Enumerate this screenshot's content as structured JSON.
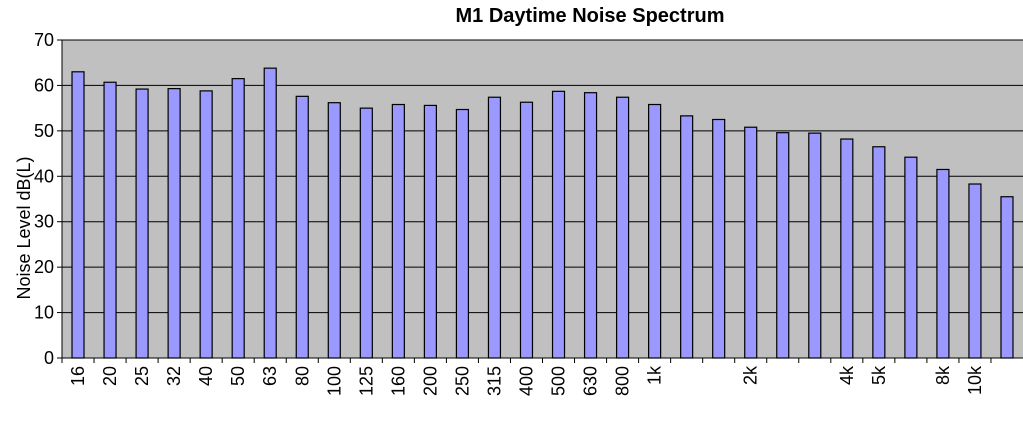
{
  "chart_data": {
    "type": "bar",
    "title": "M1 Daytime Noise Spectrum",
    "y_label": "Noise Level dB(L)",
    "categories": [
      "16",
      "20",
      "25",
      "32",
      "40",
      "50",
      "63",
      "80",
      "100",
      "125",
      "160",
      "200",
      "250",
      "315",
      "400",
      "500",
      "630",
      "800",
      "1k",
      null,
      null,
      "2k",
      null,
      null,
      "4k",
      "5k",
      null,
      "8k",
      "10k",
      null
    ],
    "values": [
      63,
      60.7,
      59.2,
      59.3,
      58.8,
      61.5,
      63.8,
      57.6,
      56.2,
      55,
      55.8,
      55.6,
      54.7,
      57.4,
      56.3,
      58.7,
      58.4,
      57.4,
      55.8,
      53.3,
      52.5,
      50.8,
      49.6,
      49.5,
      48.2,
      46.5,
      44.2,
      41.5,
      38.3,
      35.5
    ],
    "color": "#9999ff",
    "plot_background": "#c0c0c0",
    "ylim": [
      0,
      70
    ],
    "yticks": [
      0,
      10,
      20,
      30,
      40,
      50,
      60,
      70
    ],
    "grid": true
  }
}
